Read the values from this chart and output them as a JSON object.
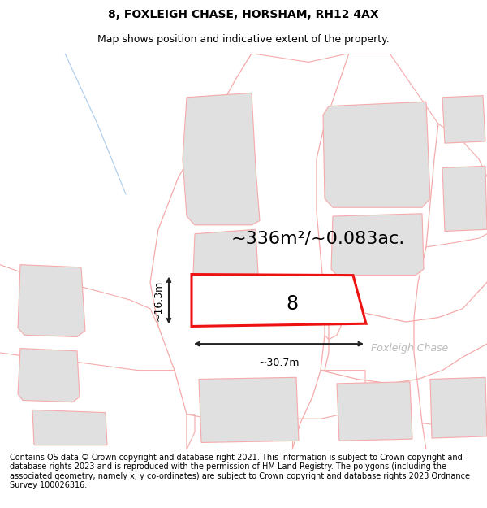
{
  "title": "8, FOXLEIGH CHASE, HORSHAM, RH12 4AX",
  "subtitle": "Map shows position and indicative extent of the property.",
  "area_text": "~336m²/~0.083ac.",
  "label_number": "8",
  "dim_width": "~30.7m",
  "dim_height": "~16.3m",
  "street_label": "Foxleigh Chase",
  "footer": "Contains OS data © Crown copyright and database right 2021. This information is subject to Crown copyright and database rights 2023 and is reproduced with the permission of HM Land Registry. The polygons (including the associated geometry, namely x, y co-ordinates) are subject to Crown copyright and database rights 2023 Ordnance Survey 100026316.",
  "bg_color": "#ffffff",
  "map_bg": "#ffffff",
  "highlight_color": "#ee1111",
  "pink": "#f5aaaa",
  "gray_fill": "#e0e0e0",
  "gray_fill2": "#e8e8e8",
  "title_fontsize": 10,
  "subtitle_fontsize": 9,
  "area_fontsize": 16,
  "label_fontsize": 17,
  "footer_fontsize": 7,
  "street_color": "#bbbbbb",
  "dim_line_color": "#222222",
  "blue_line_color": "#aaccee"
}
